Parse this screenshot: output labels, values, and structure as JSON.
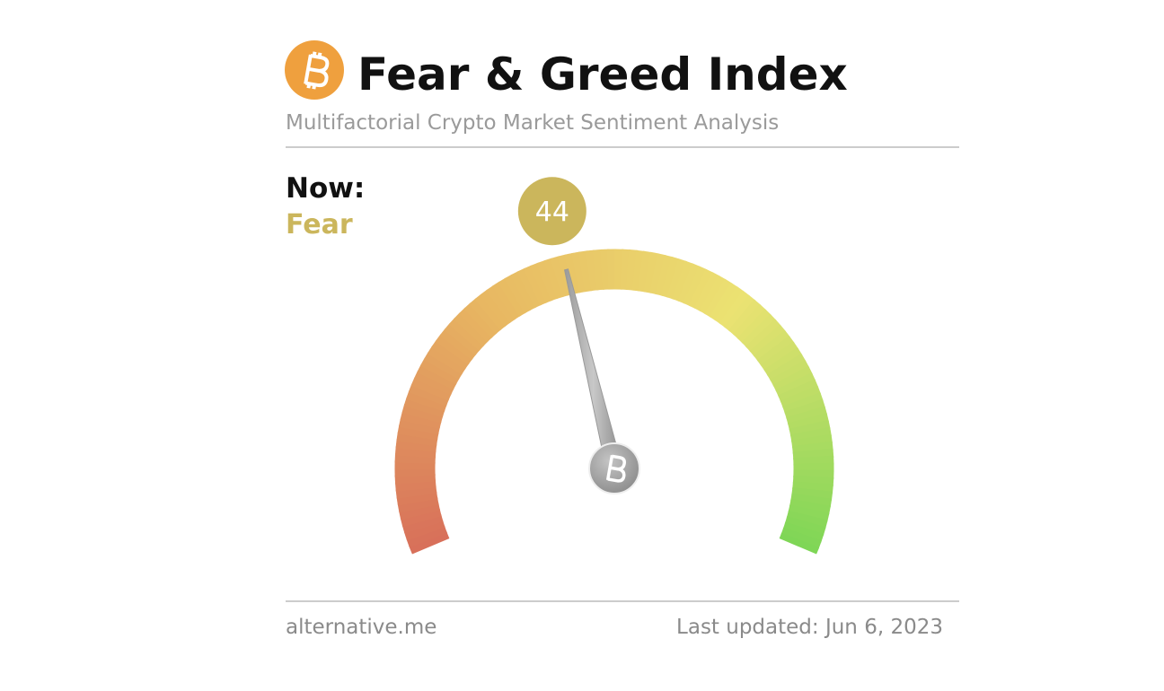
{
  "chart_data": {
    "type": "gauge",
    "title": "Fear & Greed Index",
    "subtitle": "Multifactorial Crypto Market Sentiment Analysis",
    "label": "Now:",
    "classification": "Fear",
    "value": 44,
    "ylim": [
      0,
      100
    ],
    "colors": [
      "#d8705a",
      "#e8b862",
      "#ebe272",
      "#7fd656"
    ],
    "value_color": "#cbb65c",
    "source": "alternative.me",
    "updated": "Last updated: Jun 6, 2023"
  }
}
